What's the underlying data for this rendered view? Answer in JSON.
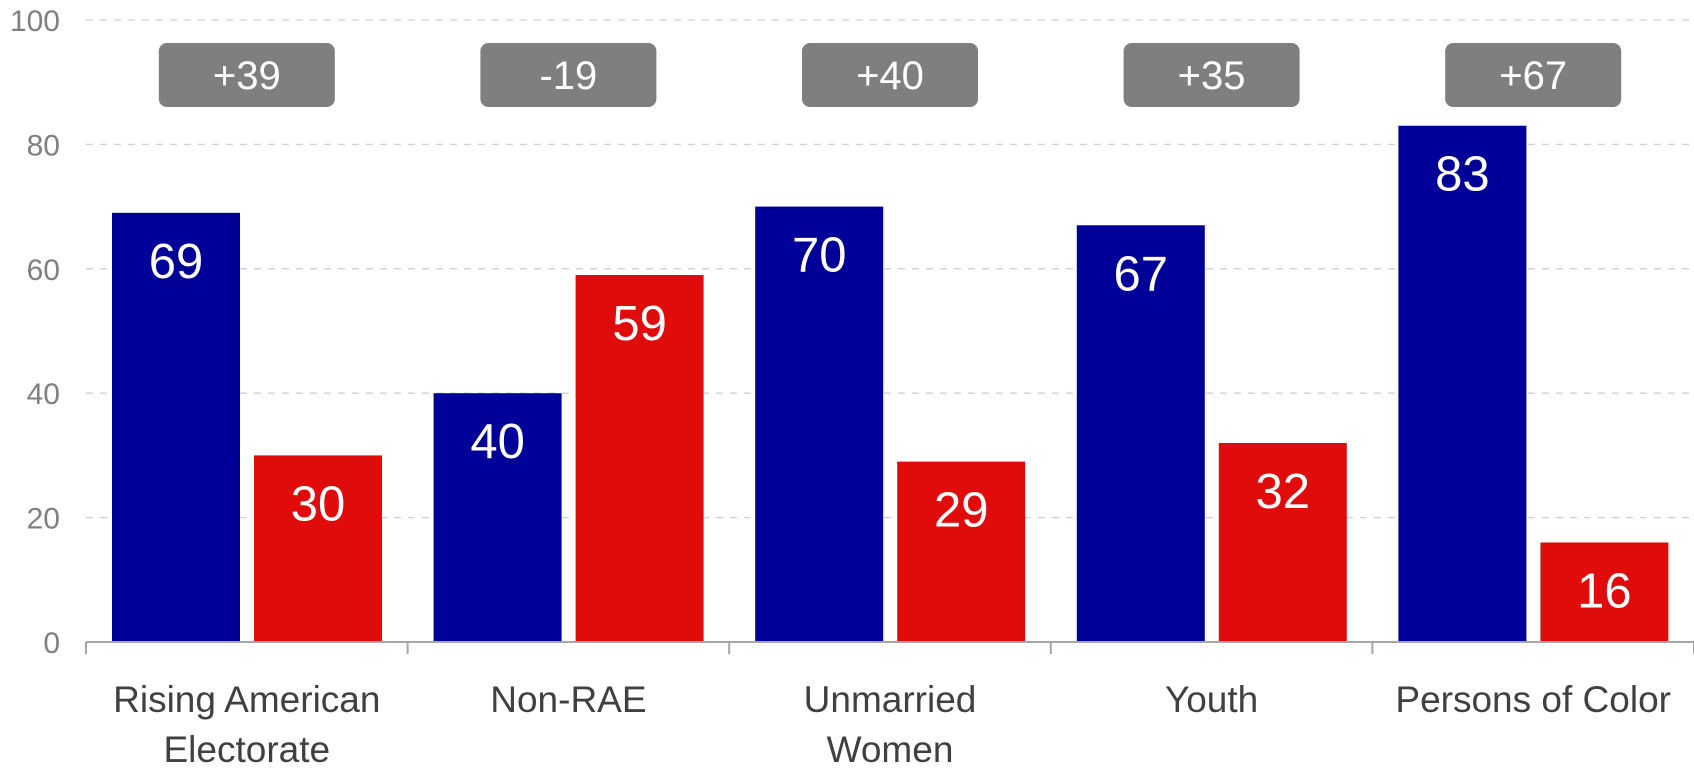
{
  "chart_data": {
    "type": "bar",
    "categories": [
      [
        "Rising American",
        "Electorate"
      ],
      [
        "Non-RAE"
      ],
      [
        "Unmarried",
        "Women"
      ],
      [
        "Youth"
      ],
      [
        "Persons of Color"
      ]
    ],
    "series": [
      {
        "values": [
          69,
          40,
          70,
          67,
          83
        ],
        "color": "#000099"
      },
      {
        "values": [
          30,
          59,
          29,
          32,
          16
        ],
        "color": "#e00c0c"
      }
    ],
    "margins": [
      "+39",
      "-19",
      "+40",
      "+35",
      "+67"
    ],
    "margin_badge_color": "#7f7f7f",
    "ylim": [
      0,
      100
    ],
    "yticks": [
      0,
      20,
      40,
      60,
      80,
      100
    ],
    "grid": true,
    "legend": "none",
    "title": "",
    "xlabel": "",
    "ylabel": ""
  }
}
